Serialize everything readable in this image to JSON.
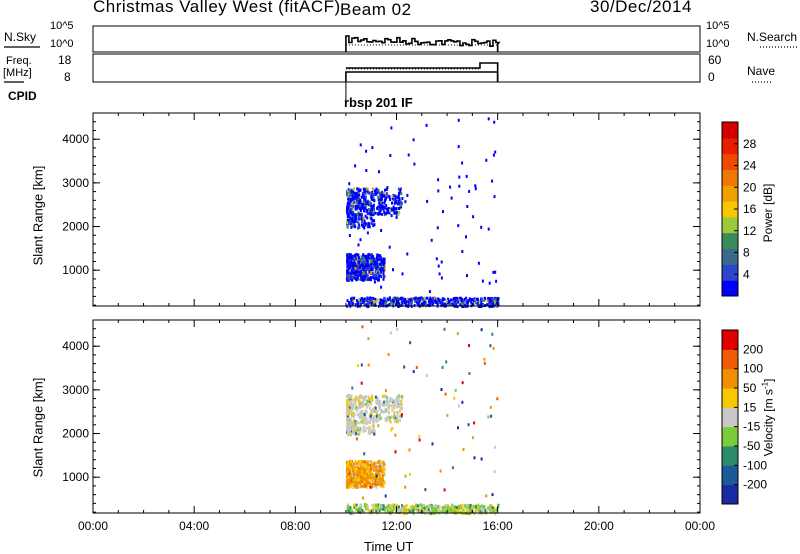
{
  "header": {
    "station": "Christmas Valley West (fitACF)",
    "beam": "Beam 02",
    "date": "30/Dec/2014"
  },
  "summary_panels": {
    "nsky_label": "N.Sky",
    "nsky_ticks": [
      "10^5",
      "10^0"
    ],
    "nsky_ticks_right": [
      "10^5",
      "10^0"
    ],
    "nsearch_label": "N.Search",
    "freq_label_1": "Freq.",
    "freq_label_2": "[MHz]",
    "freq_ticks": [
      "18",
      "8"
    ],
    "nave_label": "Nave",
    "nave_ticks": [
      "60",
      "0"
    ],
    "cpid_label": "CPID",
    "cpid_value": "rbsp 201 IF"
  },
  "chart_data": [
    {
      "type": "heatmap",
      "title": "Power",
      "ylabel": "Slant Range [km]",
      "xlabel": "",
      "x_range_hours": [
        0,
        24
      ],
      "ylim": [
        180,
        4600
      ],
      "yticks": [
        1000,
        2000,
        3000,
        4000
      ],
      "colorbar": {
        "label": "Power [dB]",
        "ticks": [
          "28",
          "24",
          "20",
          "16",
          "12",
          "8",
          "4"
        ],
        "colors": [
          "#0000ff",
          "#2b46c8",
          "#3a6a8a",
          "#3a8a5a",
          "#9aca3a",
          "#f5c800",
          "#f0a000",
          "#f07800",
          "#f04a00",
          "#e81e00",
          "#d40000"
        ]
      },
      "data_window_hours": [
        10.0,
        16.0
      ],
      "echo_regions": [
        {
          "range_km": [
            2000,
            2900
          ],
          "time_h": [
            10.0,
            12.2
          ]
        },
        {
          "range_km": [
            800,
            1400
          ],
          "time_h": [
            10.0,
            11.5
          ]
        },
        {
          "range_km": [
            200,
            400
          ],
          "time_h": [
            10.0,
            16.0
          ]
        }
      ]
    },
    {
      "type": "heatmap",
      "title": "Velocity",
      "ylabel": "Slant Range [km]",
      "xlabel": "Time UT",
      "x_range_hours": [
        0,
        24
      ],
      "ylim": [
        180,
        4600
      ],
      "yticks": [
        1000,
        2000,
        3000,
        4000
      ],
      "xticks": [
        "00:00",
        "04:00",
        "08:00",
        "12:00",
        "16:00",
        "20:00",
        "00:00"
      ],
      "colorbar": {
        "label": "Velocity [m s^-1]",
        "ticks": [
          "200",
          "100",
          "50",
          "15",
          "-15",
          "-50",
          "-100",
          "-200"
        ],
        "colors": [
          "#1a2aa0",
          "#1a5a9a",
          "#2a8a6a",
          "#7acc3a",
          "#c8c8c8",
          "#f5c800",
          "#f09000",
          "#f05a00",
          "#e00000"
        ]
      },
      "data_window_hours": [
        10.0,
        16.0
      ],
      "echo_regions": [
        {
          "range_km": [
            2000,
            2900
          ],
          "time_h": [
            10.0,
            12.2
          ]
        },
        {
          "range_km": [
            800,
            1400
          ],
          "time_h": [
            10.0,
            11.5
          ]
        },
        {
          "range_km": [
            200,
            400
          ],
          "time_h": [
            10.0,
            16.0
          ]
        }
      ]
    }
  ]
}
